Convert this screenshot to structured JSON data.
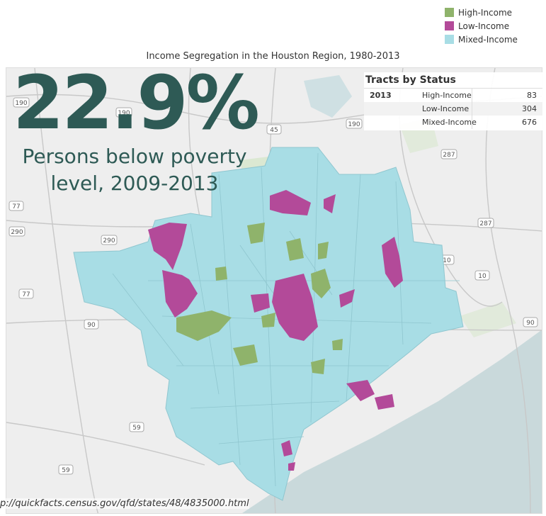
{
  "legend": {
    "items": [
      {
        "label": "High-Income",
        "color": "#8fb36b"
      },
      {
        "label": "Low-Income",
        "color": "#b34a99"
      },
      {
        "label": "Mixed-Income",
        "color": "#a8dde5"
      }
    ]
  },
  "map": {
    "title": "Income Segregation in the Houston Region, 1980-2013",
    "highway_labels": [
      "190",
      "190",
      "45",
      "190",
      "287",
      "77",
      "290",
      "290",
      "287",
      "90",
      "77",
      "90",
      "10",
      "59",
      "59",
      "10"
    ]
  },
  "overlay": {
    "stat_value": "22.9%",
    "stat_label": "Persons below poverty level, 2009-2013"
  },
  "tracts_panel": {
    "title": "Tracts by Status",
    "year": "2013",
    "rows": [
      {
        "status": "High-Income",
        "count": "83"
      },
      {
        "status": "Low-Income",
        "count": "304"
      },
      {
        "status": "Mixed-Income",
        "count": "676"
      }
    ]
  },
  "source": {
    "url": "p://quickfacts.census.gov/qfd/states/48/4835000.html"
  }
}
